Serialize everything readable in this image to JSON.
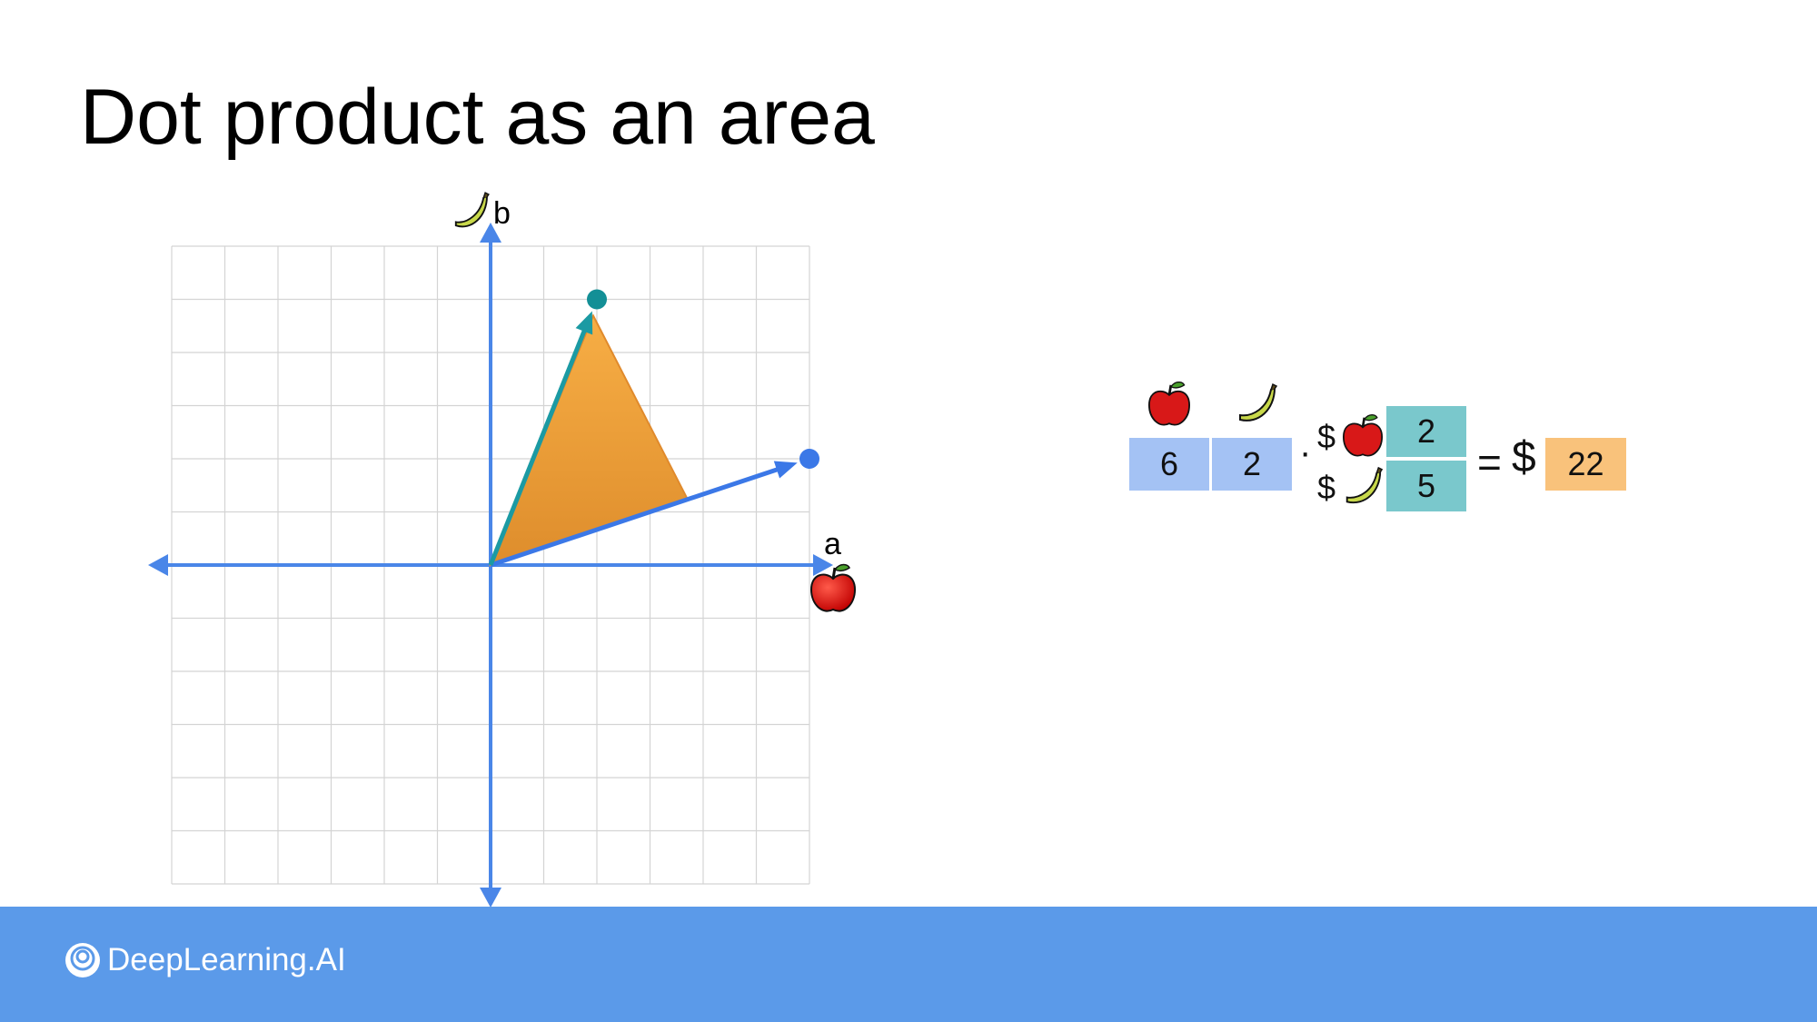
{
  "title": "Dot product as an area",
  "axes": {
    "x_label": "a",
    "y_label": "b",
    "x_icon": "apple-icon",
    "y_icon": "banana-icon"
  },
  "vectors": [
    {
      "name": "",
      "x": 6,
      "y": 2,
      "color": "#3b78e7"
    },
    {
      "name": "",
      "x": 2,
      "y": 5,
      "color": "#1b9aa3"
    }
  ],
  "shaded_triangle_color": "#f0a040",
  "equation": {
    "row_icons": [
      "apple-icon",
      "banana-icon"
    ],
    "row_values": [
      "6",
      "2"
    ],
    "dot_symbol": "·",
    "price_symbols": [
      "$",
      "$"
    ],
    "price_icons": [
      "apple-icon",
      "banana-icon"
    ],
    "column_values": [
      "2",
      "5"
    ],
    "equals_symbol": "=",
    "currency_symbol": "$",
    "result": "22"
  },
  "colors": {
    "row_vector": "#a4c2f4",
    "column_vector": "#7ac8cc",
    "result": "#f9c27b",
    "axis": "#4a86e8",
    "footer": "#5b9ae9"
  },
  "footer": {
    "brand": "DeepLearning.AI",
    "brand_icon": "deeplearning-logo-icon"
  }
}
